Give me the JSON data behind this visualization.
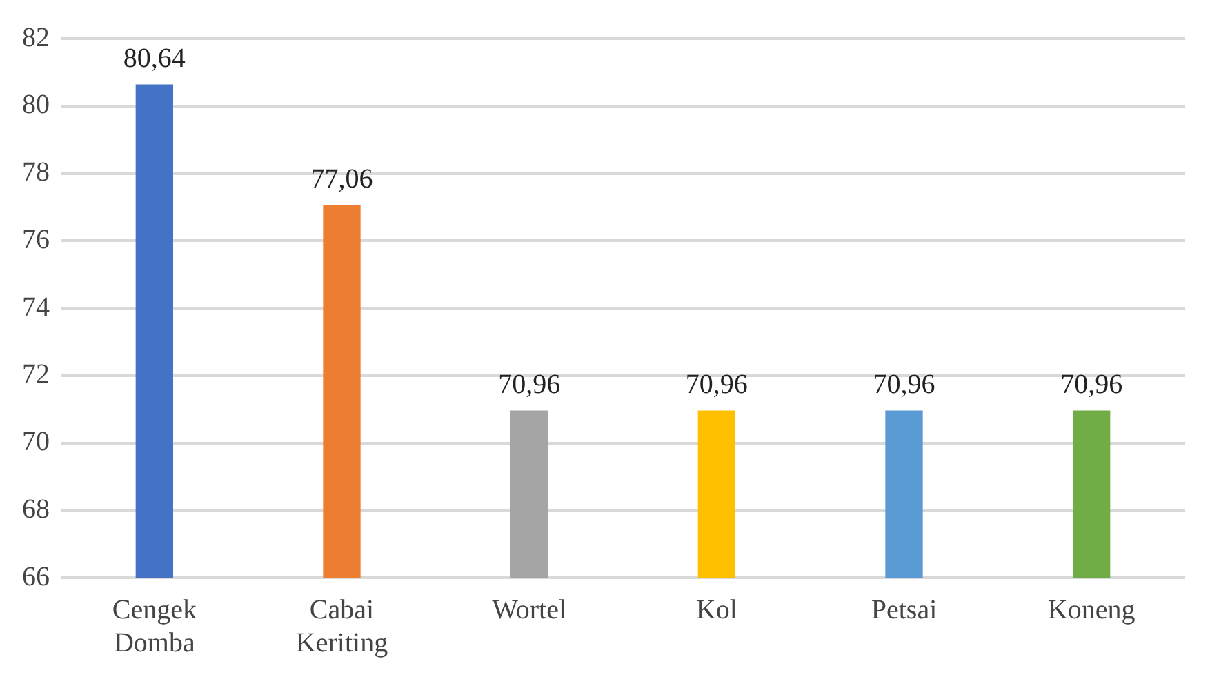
{
  "chart_data": {
    "type": "bar",
    "categories": [
      "Cengek Domba",
      "Cabai Keriting",
      "Wortel",
      "Kol",
      "Petsai",
      "Koneng"
    ],
    "values": [
      80.64,
      77.06,
      70.96,
      70.96,
      70.96,
      70.96
    ],
    "value_labels": [
      "80,64",
      "77,06",
      "70,96",
      "70,96",
      "70,96",
      "70,96"
    ],
    "colors": [
      "#4472c4",
      "#ed7d31",
      "#a5a5a5",
      "#ffc000",
      "#5b9bd5",
      "#70ad47"
    ],
    "ylim": [
      66,
      82
    ],
    "yticks": [
      66,
      68,
      70,
      72,
      74,
      76,
      78,
      80,
      82
    ],
    "grid": "y",
    "legend": false
  }
}
